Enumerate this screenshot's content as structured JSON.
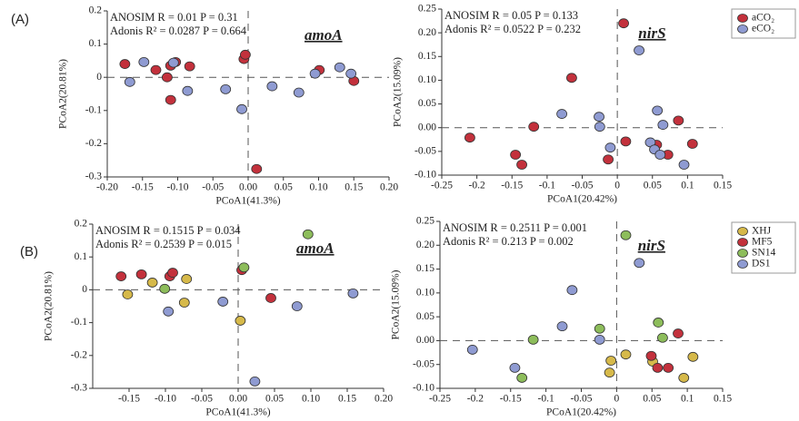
{
  "chart_data": [
    {
      "type": "scatter",
      "panel_label": "(A)",
      "gene": "amoA",
      "annotations": [
        "ANOSIM R = 0.01 P = 0.31",
        "Adonis R² = 0.0287 P = 0.664"
      ],
      "x_label": "PCoA1(41.3%)",
      "y_label": "PCoA2(20.81%)",
      "legend": false,
      "xlim": [
        -0.2,
        0.2
      ],
      "xticks": [
        {
          "value": -0.2,
          "label": "-0.20"
        },
        -0.15,
        {
          "value": -0.1,
          "label": "-0.10"
        },
        -0.05,
        {
          "value": 0,
          "label": "0.00"
        },
        0.05,
        {
          "value": 0.1,
          "label": "0.10"
        },
        0.15,
        {
          "value": 0.2,
          "label": "0.20"
        }
      ],
      "ylim": [
        -0.3,
        0.2
      ],
      "yticks": [
        -0.3,
        -0.2,
        -0.1,
        0,
        0.1,
        0.2
      ],
      "series": [
        {
          "name": "aCO₂",
          "color": "#c3313c",
          "x": [
            -0.175,
            -0.131,
            -0.11,
            -0.115,
            -0.11,
            -0.103,
            -0.083,
            -0.006,
            -0.004,
            0.012,
            0.101,
            0.15
          ],
          "values": [
            0.04,
            0.022,
            0.035,
            0.0,
            -0.068,
            0.046,
            0.033,
            0.055,
            0.068,
            -0.276,
            0.022,
            -0.011
          ]
        },
        {
          "name": "eCO₂",
          "color": "#8f9bd2",
          "x": [
            -0.168,
            -0.148,
            -0.106,
            -0.086,
            -0.032,
            -0.009,
            0.034,
            0.072,
            0.095,
            0.13,
            0.146
          ],
          "values": [
            -0.014,
            0.046,
            0.044,
            -0.041,
            -0.036,
            -0.096,
            -0.027,
            -0.046,
            0.011,
            0.03,
            0.011
          ]
        }
      ]
    },
    {
      "type": "scatter",
      "gene": "nirS",
      "annotations": [
        "ANOSIM R = 0.05 P = 0.133",
        "Adonis R² = 0.0522 P = 0.232"
      ],
      "x_label": "PCoA1(20.42%)",
      "y_label": "PCoA2(15.09%)",
      "legend": true,
      "xlim": [
        -0.25,
        0.15
      ],
      "xticks": [
        -0.25,
        -0.2,
        -0.15,
        -0.1,
        -0.05,
        0,
        0.05,
        0.1,
        0.15
      ],
      "ylim": [
        -0.1,
        0.25
      ],
      "yticks": [
        {
          "value": -0.1,
          "label": "-0.10"
        },
        -0.05,
        {
          "value": 0,
          "label": "0.00"
        },
        0.05,
        {
          "value": 0.1,
          "label": "0.10"
        },
        0.15,
        {
          "value": 0.2,
          "label": "0.20"
        },
        0.25
      ],
      "series": [
        {
          "name": "aCO₂",
          "color": "#c3313c",
          "x": [
            0.009,
            -0.065,
            -0.119,
            -0.21,
            -0.145,
            -0.136,
            -0.013,
            0.012,
            0.087,
            0.056,
            0.072,
            0.107
          ],
          "values": [
            0.22,
            0.105,
            0.002,
            -0.021,
            -0.057,
            -0.078,
            -0.067,
            -0.029,
            0.015,
            -0.036,
            -0.057,
            -0.034
          ]
        },
        {
          "name": "eCO₂",
          "color": "#8f9bd2",
          "x": [
            0.031,
            -0.079,
            -0.026,
            -0.025,
            -0.01,
            0.057,
            0.065,
            0.047,
            0.053,
            0.061,
            0.095
          ],
          "values": [
            0.163,
            0.029,
            0.023,
            0.002,
            -0.042,
            0.036,
            0.006,
            -0.031,
            -0.046,
            -0.057,
            -0.078
          ]
        }
      ]
    },
    {
      "type": "scatter",
      "panel_label": "(B)",
      "gene": "amoA",
      "annotations": [
        "ANOSIM R = 0.1515 P = 0.034",
        "Adonis R² = 0.2539 P = 0.015"
      ],
      "x_label": "PCoA1(41.3%)",
      "y_label": "PCoA2(20.81%)",
      "legend": false,
      "xlim": [
        -0.2,
        0.2
      ],
      "xticks": [
        -0.15,
        {
          "value": -0.1,
          "label": "-0.10"
        },
        -0.05,
        {
          "value": 0,
          "label": "0.00"
        },
        0.05,
        {
          "value": 0.1,
          "label": "0.10"
        },
        0.15,
        {
          "value": 0.2,
          "label": "0.20"
        }
      ],
      "ylim": [
        -0.3,
        0.2
      ],
      "yticks": [
        -0.3,
        -0.2,
        -0.1,
        0,
        0.1,
        0.2
      ],
      "series": [
        {
          "name": "XHJ",
          "color": "#d6b94a",
          "x": [
            -0.152,
            -0.118,
            -0.071,
            -0.074,
            0.003
          ],
          "values": [
            -0.014,
            0.022,
            0.033,
            -0.039,
            -0.094
          ]
        },
        {
          "name": "MF5",
          "color": "#c3313c",
          "x": [
            -0.161,
            -0.133,
            -0.094,
            -0.09,
            0.005,
            0.045
          ],
          "values": [
            0.041,
            0.047,
            0.041,
            0.052,
            0.06,
            -0.025
          ]
        },
        {
          "name": "SN14",
          "color": "#8dbd5b",
          "x": [
            -0.101,
            0.008,
            0.096
          ],
          "values": [
            0.003,
            0.068,
            0.169
          ]
        },
        {
          "name": "DS1",
          "color": "#8f9bd2",
          "x": [
            -0.096,
            -0.021,
            0.023,
            0.081,
            0.158
          ],
          "values": [
            -0.066,
            -0.036,
            -0.279,
            -0.05,
            -0.011
          ]
        }
      ]
    },
    {
      "type": "scatter",
      "gene": "nirS",
      "annotations": [
        "ANOSIM R = 0.2511 P = 0.001",
        "Adonis R² = 0.213 P = 0.002"
      ],
      "x_label": "PCoA1(20.42%)",
      "y_label": "PCoA2(15.09%)",
      "legend": true,
      "xlim": [
        -0.25,
        0.15
      ],
      "xticks": [
        -0.25,
        -0.2,
        -0.15,
        -0.1,
        -0.05,
        0,
        0.05,
        0.1,
        0.15
      ],
      "ylim": [
        -0.1,
        0.25
      ],
      "yticks": [
        {
          "value": -0.1,
          "label": "-0.10"
        },
        -0.05,
        {
          "value": 0,
          "label": "0.00"
        },
        0.05,
        {
          "value": 0.1,
          "label": "0.10"
        },
        0.15,
        {
          "value": 0.2,
          "label": "0.20"
        },
        0.25
      ],
      "series": [
        {
          "name": "XHJ",
          "color": "#d6b94a",
          "x": [
            0.013,
            -0.008,
            -0.01,
            0.051,
            0.108,
            0.095
          ],
          "values": [
            -0.029,
            -0.042,
            -0.067,
            -0.044,
            -0.034,
            -0.078
          ]
        },
        {
          "name": "MF5",
          "color": "#c3313c",
          "x": [
            0.049,
            0.058,
            0.073,
            0.087
          ],
          "values": [
            -0.032,
            -0.057,
            -0.057,
            0.015
          ]
        },
        {
          "name": "SN14",
          "color": "#8dbd5b",
          "x": [
            0.013,
            -0.118,
            -0.134,
            -0.024,
            0.059,
            0.065
          ],
          "values": [
            0.221,
            0.002,
            -0.078,
            0.025,
            0.038,
            0.006
          ]
        },
        {
          "name": "DS1",
          "color": "#8f9bd2",
          "x": [
            0.032,
            -0.063,
            -0.077,
            -0.024,
            -0.204,
            -0.144
          ],
          "values": [
            0.163,
            0.106,
            0.03,
            0.002,
            -0.019,
            -0.057
          ]
        }
      ]
    }
  ]
}
